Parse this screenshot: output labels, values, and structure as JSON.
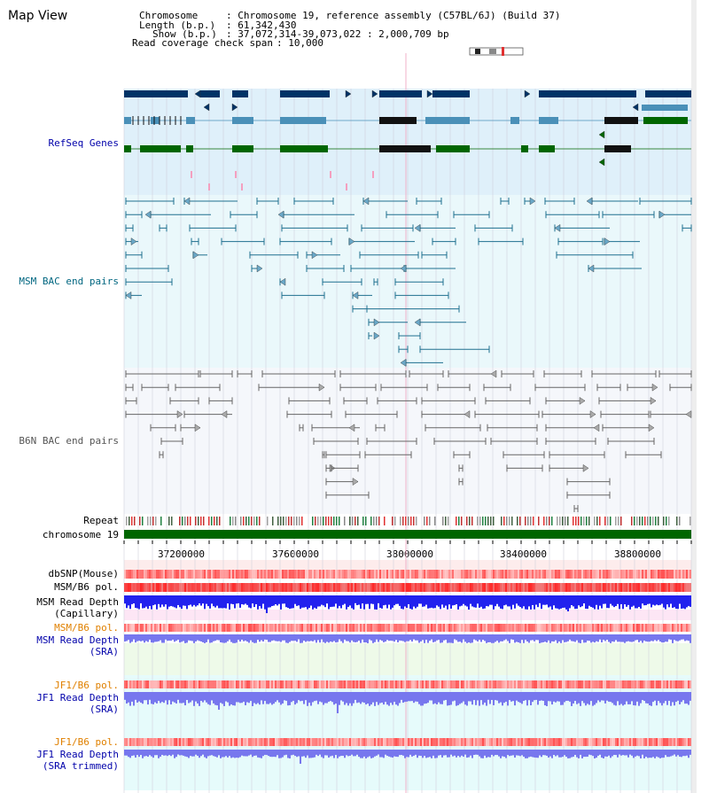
{
  "header": {
    "title": "Map View",
    "chromosome_key": "Chromosome",
    "chromosome_value": ": Chromosome 19, reference assembly (C57BL/6J) (Build 37)",
    "length_key": "Length (b.p.)",
    "length_value": ": 61,342,430",
    "show_key": "Show (b.p.)",
    "show_value": ": 37,072,314-39,073,022 : 2,000,709 bp",
    "span_key": "Read coverage check span",
    "span_value": ": 10,000"
  },
  "tracks": {
    "refseq": "RefSeq Genes",
    "msm_bac": "MSM BAC end pairs",
    "b6n_bac": "B6N BAC end pairs",
    "repeat": "Repeat",
    "chromosome": "chromosome 19",
    "dbsnp": "dbSNP(Mouse)",
    "msm_pol": "MSM/B6 pol.",
    "msm_depth_cap": "MSM Read Depth\n(Capillary)",
    "msm_pol2": "MSM/B6 pol.",
    "msm_depth_sra": "MSM Read Depth\n(SRA)",
    "jf1_pol": "JF1/B6 pol.",
    "jf1_depth_sra": "JF1 Read Depth\n(SRA)",
    "jf1_pol2": "JF1/B6 pol.",
    "jf1_depth_trim": "JF1 Read Depth\n(SRA trimmed)"
  },
  "axis": {
    "ticks": [
      "37200000",
      "37600000",
      "38000000",
      "38400000",
      "38800000"
    ]
  },
  "colors": {
    "label_black": "#000000",
    "label_blue": "#0000aa",
    "label_teal": "#006680",
    "label_orange": "#e08000",
    "gene_dark": "#003366",
    "gene_mid": "#4a90b8",
    "gene_green": "#006600",
    "chrom_green": "#006600",
    "depth_blue": "#2222ee",
    "depth_light": "#7777ee"
  }
}
